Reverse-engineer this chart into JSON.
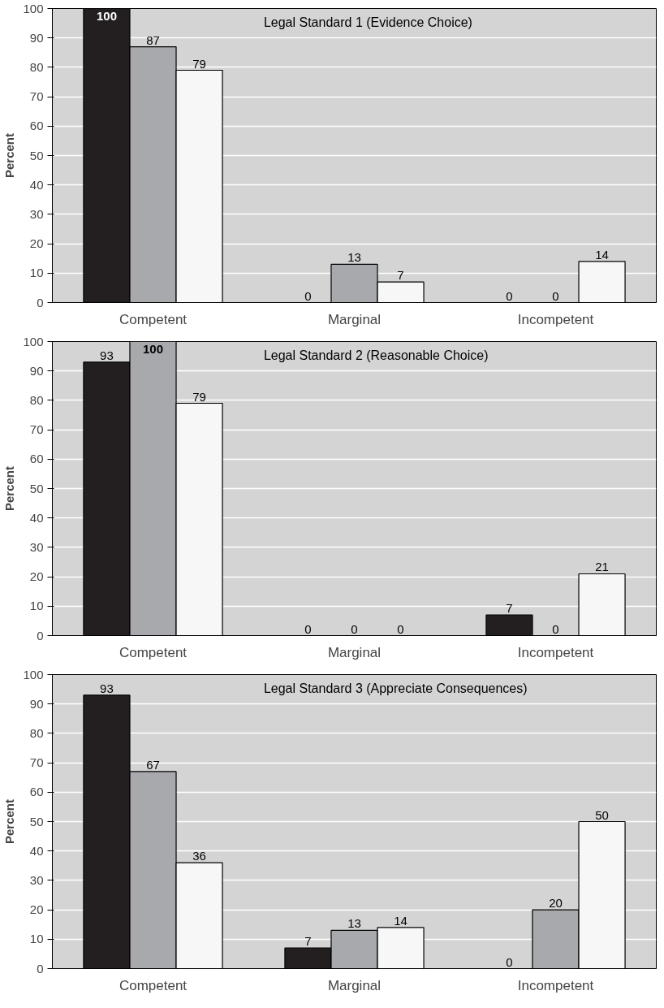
{
  "chart_data": [
    {
      "type": "bar",
      "title": "Legal Standard 1 (Evidence Choice)",
      "ylabel": "Percent",
      "categories": [
        "Competent",
        "Marginal",
        "Incompetent"
      ],
      "series": [
        {
          "color": "#231f20",
          "values": [
            100,
            0,
            0
          ]
        },
        {
          "color": "#a7a9ac",
          "values": [
            87,
            13,
            0
          ]
        },
        {
          "color": "#f7f7f7",
          "values": [
            79,
            7,
            14
          ]
        }
      ],
      "ylim": [
        0,
        100
      ],
      "yticks": [
        0,
        10,
        20,
        30,
        40,
        50,
        60,
        70,
        80,
        90,
        100
      ],
      "grid": "y",
      "data_labels": true
    },
    {
      "type": "bar",
      "title": "Legal Standard 2 (Reasonable Choice)",
      "ylabel": "Percent",
      "categories": [
        "Competent",
        "Marginal",
        "Incompetent"
      ],
      "series": [
        {
          "color": "#231f20",
          "values": [
            93,
            0,
            7
          ]
        },
        {
          "color": "#a7a9ac",
          "values": [
            100,
            0,
            0
          ]
        },
        {
          "color": "#f7f7f7",
          "values": [
            79,
            0,
            21
          ]
        }
      ],
      "ylim": [
        0,
        100
      ],
      "yticks": [
        0,
        10,
        20,
        30,
        40,
        50,
        60,
        70,
        80,
        90,
        100
      ],
      "grid": "y",
      "data_labels": true
    },
    {
      "type": "bar",
      "title": "Legal Standard 3 (Appreciate Consequences)",
      "ylabel": "Percent",
      "categories": [
        "Competent",
        "Marginal",
        "Incompetent"
      ],
      "series": [
        {
          "color": "#231f20",
          "values": [
            93,
            7,
            0
          ]
        },
        {
          "color": "#a7a9ac",
          "values": [
            67,
            13,
            20
          ]
        },
        {
          "color": "#f7f7f7",
          "values": [
            36,
            14,
            50
          ]
        }
      ],
      "ylim": [
        0,
        100
      ],
      "yticks": [
        0,
        10,
        20,
        30,
        40,
        50,
        60,
        70,
        80,
        90,
        100
      ],
      "grid": "y",
      "data_labels": true
    }
  ]
}
